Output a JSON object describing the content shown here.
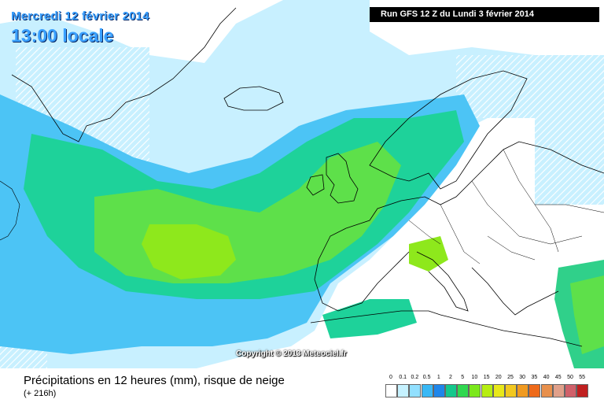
{
  "header": {
    "date": "Mercredi 12 février 2014",
    "time": "13:00 locale",
    "run": "Run GFS 12 Z du Lundi 3 février 2014"
  },
  "copyright": "Copyright © 2013 Meteociel.fr",
  "legend": {
    "title": "Précipitations en 12 heures (mm), risque de neige",
    "subtitle": "(+ 216h)",
    "scale": [
      {
        "label": "0",
        "color": "#ffffff"
      },
      {
        "label": "0.1",
        "color": "#c6f2ff"
      },
      {
        "label": "0.2",
        "color": "#92e0ff"
      },
      {
        "label": "0.5",
        "color": "#39b8f5"
      },
      {
        "label": "1",
        "color": "#1f86ea"
      },
      {
        "label": "2",
        "color": "#14c88c"
      },
      {
        "label": "5",
        "color": "#30d850"
      },
      {
        "label": "10",
        "color": "#7be81c"
      },
      {
        "label": "15",
        "color": "#b6ee12"
      },
      {
        "label": "20",
        "color": "#e8e81a"
      },
      {
        "label": "25",
        "color": "#f2c81f"
      },
      {
        "label": "30",
        "color": "#f09a20"
      },
      {
        "label": "35",
        "color": "#ee6a1a"
      },
      {
        "label": "40",
        "color": "#e8904c"
      },
      {
        "label": "45",
        "color": "#e0a08a"
      },
      {
        "label": "50",
        "color": "#d0606a"
      },
      {
        "label": "55",
        "color": "#c02020"
      }
    ]
  }
}
